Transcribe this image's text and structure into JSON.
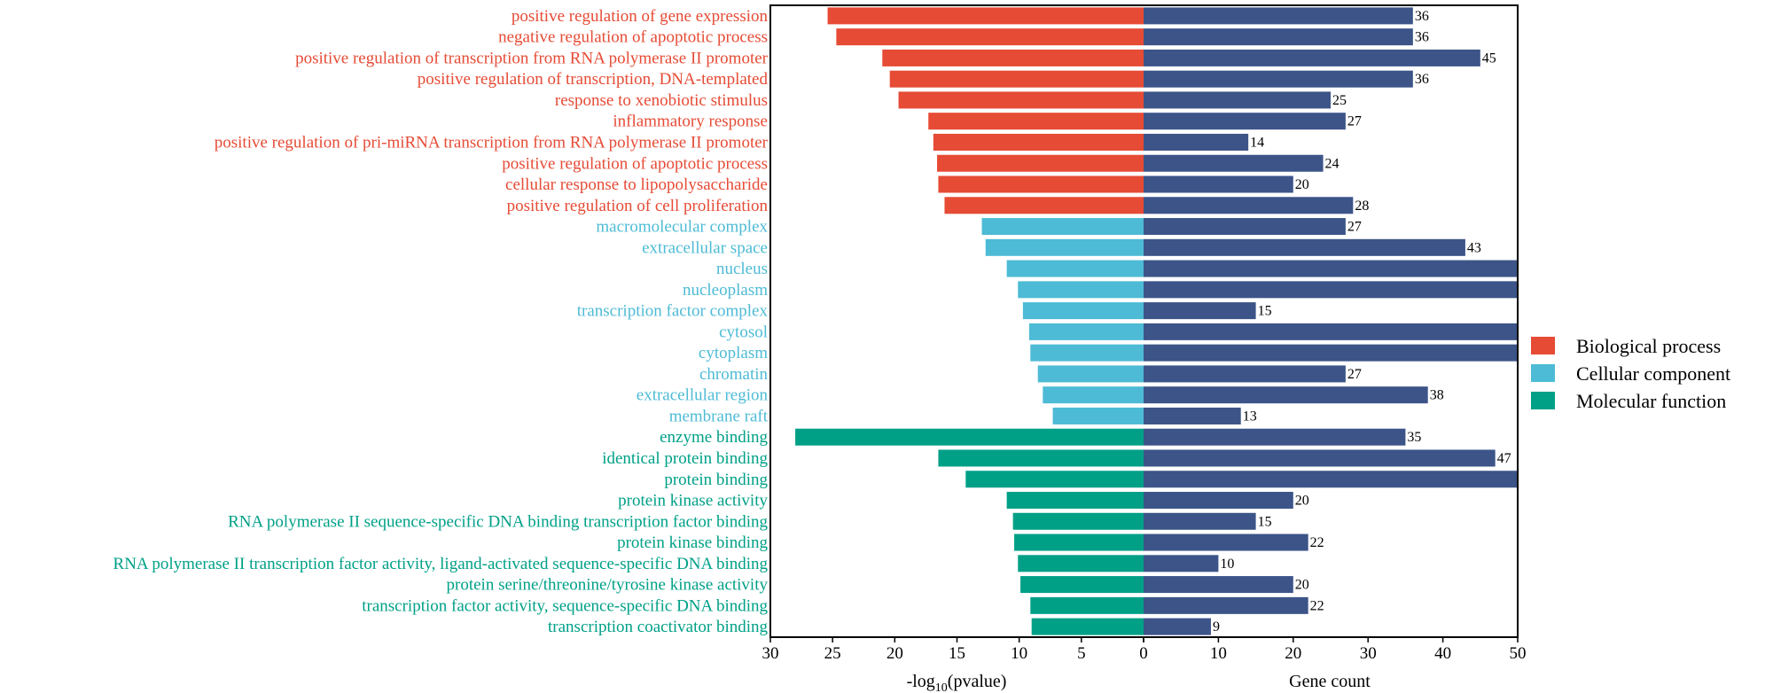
{
  "chart_data": {
    "type": "bar",
    "subtype": "diverging-horizontal-bar",
    "title": "",
    "categories": [
      "positive regulation of gene expression",
      "negative regulation of apoptotic process",
      "positive regulation of transcription from RNA polymerase II promoter",
      "positive regulation of transcription, DNA-templated",
      "response to xenobiotic stimulus",
      "inflammatory response",
      "positive regulation of pri-miRNA transcription from RNA polymerase II promoter",
      "positive regulation of apoptotic process",
      "cellular response to lipopolysaccharide",
      "positive regulation of cell proliferation",
      "macromolecular complex",
      "extracellular space",
      "nucleus",
      "nucleoplasm",
      "transcription factor complex",
      "cytosol",
      "cytoplasm",
      "chromatin",
      "extracellular region",
      "membrane raft",
      "enzyme binding",
      "identical protein binding",
      "protein binding",
      "protein kinase activity",
      "RNA polymerase II sequence-specific DNA binding transcription factor binding",
      "protein kinase binding",
      "RNA polymerase II transcription factor activity, ligand-activated sequence-specific DNA binding",
      "protein serine/threonine/tyrosine kinase activity",
      "transcription factor activity, sequence-specific DNA binding",
      "transcription coactivator binding"
    ],
    "groups": [
      "Biological process",
      "Biological process",
      "Biological process",
      "Biological process",
      "Biological process",
      "Biological process",
      "Biological process",
      "Biological process",
      "Biological process",
      "Biological process",
      "Cellular component",
      "Cellular component",
      "Cellular component",
      "Cellular component",
      "Cellular component",
      "Cellular component",
      "Cellular component",
      "Cellular component",
      "Cellular component",
      "Cellular component",
      "Molecular function",
      "Molecular function",
      "Molecular function",
      "Molecular function",
      "Molecular function",
      "Molecular function",
      "Molecular function",
      "Molecular function",
      "Molecular function",
      "Molecular function"
    ],
    "series": [
      {
        "name": "-log10(pvalue)",
        "side": "left",
        "values": [
          25.4,
          24.7,
          21.0,
          20.4,
          19.7,
          17.3,
          16.9,
          16.6,
          16.5,
          16.0,
          13.0,
          12.7,
          11.0,
          10.1,
          9.7,
          9.2,
          9.1,
          8.5,
          8.1,
          7.3,
          28.0,
          16.5,
          14.3,
          11.0,
          10.5,
          10.4,
          10.1,
          9.9,
          9.1,
          9.0
        ]
      },
      {
        "name": "Gene count",
        "side": "right",
        "color": "#3C5488",
        "values": [
          36,
          36,
          45,
          36,
          25,
          27,
          14,
          24,
          20,
          28,
          27,
          43,
          50,
          50,
          15,
          50,
          50,
          27,
          38,
          13,
          35,
          47,
          50,
          20,
          15,
          22,
          10,
          20,
          22,
          9
        ],
        "data_labels": [
          "36",
          "36",
          "45",
          "36",
          "25",
          "27",
          "14",
          "24",
          "20",
          "28",
          "27",
          "43",
          "",
          "",
          "15",
          "",
          "",
          "27",
          "38",
          "13",
          "35",
          "47",
          "",
          "20",
          "15",
          "22",
          "10",
          "20",
          "22",
          "9"
        ],
        "clipped_at_axis_max": [
          false,
          false,
          false,
          false,
          false,
          false,
          false,
          false,
          false,
          false,
          false,
          false,
          true,
          true,
          false,
          true,
          true,
          false,
          false,
          false,
          false,
          false,
          true,
          false,
          false,
          false,
          false,
          false,
          false,
          false
        ]
      }
    ],
    "left_axis": {
      "label_prefix": "-log",
      "label_sub": "10",
      "label_suffix": "(pvalue)",
      "range": [
        30,
        0
      ],
      "ticks": [
        "30",
        "25",
        "20",
        "15",
        "10",
        "5",
        "0"
      ],
      "tick_values": [
        30,
        25,
        20,
        15,
        10,
        5,
        0
      ]
    },
    "right_axis": {
      "label": "Gene count",
      "range": [
        0,
        50
      ],
      "ticks": [
        "0",
        "10",
        "20",
        "30",
        "40",
        "50"
      ],
      "tick_values": [
        0,
        10,
        20,
        30,
        40,
        50
      ]
    },
    "legend": {
      "placement": "right",
      "entries": [
        {
          "name": "Biological process",
          "color": "#E64B35"
        },
        {
          "name": "Cellular component",
          "color": "#4DBBD5"
        },
        {
          "name": "Molecular function",
          "color": "#00A087"
        }
      ]
    },
    "grid": false
  }
}
